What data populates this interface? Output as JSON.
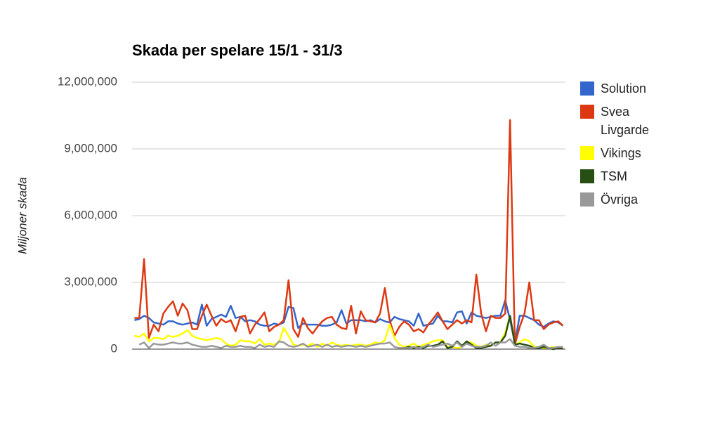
{
  "chart_data": {
    "type": "line",
    "title": "Skada per spelare 15/1 - 31/3",
    "y_label": "Miljoner skada",
    "categories": [
      null,
      null,
      null,
      null,
      null,
      null,
      null,
      null,
      null,
      null,
      null,
      null,
      null,
      null,
      null,
      null,
      null,
      null,
      null,
      null,
      null,
      null,
      null,
      null,
      null,
      null,
      null,
      null,
      null,
      null,
      null,
      null,
      null,
      null,
      null,
      null,
      null,
      null,
      null,
      null,
      null,
      null,
      null,
      null,
      null,
      null,
      null,
      null,
      null,
      null,
      null,
      null,
      null,
      null,
      null,
      null,
      null,
      null,
      null,
      null,
      null,
      null,
      null,
      null,
      null,
      null,
      null,
      null,
      null,
      null,
      null,
      null,
      null,
      null,
      null,
      null,
      null,
      null,
      null,
      null,
      null,
      null,
      null,
      null,
      null,
      null,
      null,
      null,
      null,
      null
    ],
    "ylim": [
      0,
      12000000
    ],
    "yticks": [
      0,
      {
        "value": 3000000,
        "label": "3,000,000"
      },
      {
        "value": 6000000,
        "label": "6,000,000"
      },
      {
        "value": 9000000,
        "label": "9,000,000"
      },
      {
        "value": 12000000,
        "label": "12,000,000"
      }
    ],
    "grid": true,
    "legend": "right",
    "series": [
      {
        "name": "Solution",
        "color": "#3366cc",
        "values": [
          1300000.0,
          1350000.0,
          1500000.0,
          1400000.0,
          1200000.0,
          1150000.0,
          1100000.0,
          1250000.0,
          1250000.0,
          1150000.0,
          1100000.0,
          1150000.0,
          1200000.0,
          1100000.0,
          2000000.0,
          1050000.0,
          1350000.0,
          1450000.0,
          1550000.0,
          1450000.0,
          1950000.0,
          1400000.0,
          1450000.0,
          1250000.0,
          1300000.0,
          1250000.0,
          1100000.0,
          1050000.0,
          1050000.0,
          1150000.0,
          1100000.0,
          1200000.0,
          1900000.0,
          1850000.0,
          950000.0,
          1150000.0,
          1100000.0,
          1100000.0,
          1100000.0,
          1050000.0,
          1050000.0,
          1100000.0,
          1200000.0,
          1750000.0,
          1150000.0,
          1300000.0,
          1300000.0,
          1300000.0,
          1250000.0,
          1300000.0,
          1200000.0,
          1350000.0,
          1250000.0,
          1200000.0,
          1450000.0,
          1350000.0,
          1300000.0,
          1250000.0,
          1050000.0,
          1600000.0,
          1050000.0,
          1100000.0,
          1150000.0,
          1500000.0,
          1250000.0,
          1250000.0,
          1200000.0,
          1650000.0,
          1700000.0,
          1150000.0,
          1650000.0,
          1500000.0,
          1450000.0,
          1400000.0,
          1450000.0,
          1500000.0,
          1500000.0,
          2200000.0,
          1300000.0,
          300000.0,
          1500000.0,
          1500000.0,
          1400000.0,
          1300000.0,
          1100000.0,
          1000000.0,
          1150000.0,
          1250000.0,
          1200000.0,
          1050000.0
        ]
      },
      {
        "name": "Svea Livgarde",
        "color": "#dc3912",
        "values": [
          1400000.0,
          1400000.0,
          4050000.0,
          500000.0,
          1100000.0,
          800000.0,
          1600000.0,
          1900000.0,
          2150000.0,
          1500000.0,
          2050000.0,
          1750000.0,
          900000.0,
          900000.0,
          1500000.0,
          2000000.0,
          1500000.0,
          1050000.0,
          1350000.0,
          1200000.0,
          1300000.0,
          800000.0,
          1450000.0,
          1500000.0,
          700000.0,
          1100000.0,
          1350000.0,
          1650000.0,
          800000.0,
          1000000.0,
          1100000.0,
          1300000.0,
          3100000.0,
          900000.0,
          550000.0,
          1400000.0,
          950000.0,
          700000.0,
          1000000.0,
          1250000.0,
          1400000.0,
          1450000.0,
          1100000.0,
          950000.0,
          900000.0,
          1950000.0,
          700000.0,
          1700000.0,
          1300000.0,
          1250000.0,
          1200000.0,
          1600000.0,
          2750000.0,
          1300000.0,
          600000.0,
          1000000.0,
          1250000.0,
          1100000.0,
          800000.0,
          900000.0,
          750000.0,
          1100000.0,
          1350000.0,
          1650000.0,
          1250000.0,
          900000.0,
          1100000.0,
          1300000.0,
          1150000.0,
          1300000.0,
          1200000.0,
          3350000.0,
          1600000.0,
          800000.0,
          1500000.0,
          1400000.0,
          1400000.0,
          1600000.0,
          10300000.0,
          200000.0,
          1000000.0,
          1600000.0,
          3000000.0,
          1300000.0,
          1300000.0,
          900000.0,
          1100000.0,
          1200000.0,
          1250000.0,
          1050000.0
        ]
      },
      {
        "name": "Vikings",
        "color": "#ffff00",
        "values": [
          600000.0,
          550000.0,
          700000.0,
          350000.0,
          500000.0,
          500000.0,
          450000.0,
          600000.0,
          550000.0,
          600000.0,
          700000.0,
          850000.0,
          600000.0,
          500000.0,
          450000.0,
          400000.0,
          450000.0,
          500000.0,
          450000.0,
          250000.0,
          150000.0,
          200000.0,
          400000.0,
          350000.0,
          350000.0,
          250000.0,
          450000.0,
          200000.0,
          250000.0,
          200000.0,
          300000.0,
          950000.0,
          600000.0,
          200000.0,
          150000.0,
          200000.0,
          150000.0,
          250000.0,
          100000.0,
          250000.0,
          150000.0,
          300000.0,
          200000.0,
          150000.0,
          200000.0,
          150000.0,
          200000.0,
          200000.0,
          150000.0,
          200000.0,
          300000.0,
          250000.0,
          400000.0,
          1100000.0,
          500000.0,
          200000.0,
          100000.0,
          150000.0,
          250000.0,
          100000.0,
          200000.0,
          250000.0,
          350000.0,
          400000.0,
          400000.0,
          100000.0,
          100000.0,
          50000.0,
          100000.0,
          300000.0,
          300000.0,
          150000.0,
          100000.0,
          200000.0,
          150000.0,
          300000.0,
          300000.0,
          750000.0,
          1500000.0,
          200000.0,
          300000.0,
          450000.0,
          350000.0,
          100000.0,
          100000.0,
          50000.0,
          50000.0,
          100000.0,
          50000.0,
          100000.0
        ]
      },
      {
        "name": "TSM",
        "color": "#274e13",
        "values": [
          null,
          null,
          null,
          null,
          null,
          null,
          null,
          null,
          null,
          null,
          null,
          null,
          null,
          null,
          null,
          null,
          null,
          null,
          null,
          null,
          null,
          null,
          null,
          null,
          null,
          null,
          null,
          null,
          null,
          null,
          null,
          null,
          null,
          null,
          null,
          null,
          null,
          null,
          null,
          null,
          null,
          null,
          null,
          null,
          null,
          null,
          null,
          null,
          null,
          null,
          null,
          null,
          null,
          null,
          null,
          null,
          50000.0,
          100000.0,
          50000.0,
          100000.0,
          50000.0,
          150000.0,
          150000.0,
          200000.0,
          350000.0,
          50000.0,
          100000.0,
          350000.0,
          150000.0,
          350000.0,
          200000.0,
          50000.0,
          50000.0,
          100000.0,
          150000.0,
          300000.0,
          300000.0,
          600000.0,
          1500000.0,
          200000.0,
          250000.0,
          200000.0,
          150000.0,
          50000.0,
          50000.0,
          100000.0,
          50000.0,
          0,
          50000.0,
          50000.0
        ]
      },
      {
        "name": "Övriga",
        "color": "#999999",
        "values": [
          null,
          200000.0,
          300000.0,
          50000.0,
          250000.0,
          200000.0,
          200000.0,
          250000.0,
          300000.0,
          250000.0,
          250000.0,
          300000.0,
          200000.0,
          150000.0,
          100000.0,
          100000.0,
          150000.0,
          100000.0,
          50000.0,
          150000.0,
          100000.0,
          100000.0,
          150000.0,
          100000.0,
          100000.0,
          50000.0,
          200000.0,
          100000.0,
          150000.0,
          100000.0,
          350000.0,
          300000.0,
          150000.0,
          100000.0,
          150000.0,
          250000.0,
          100000.0,
          150000.0,
          200000.0,
          100000.0,
          200000.0,
          100000.0,
          150000.0,
          100000.0,
          150000.0,
          150000.0,
          100000.0,
          150000.0,
          100000.0,
          150000.0,
          200000.0,
          250000.0,
          250000.0,
          300000.0,
          100000.0,
          50000.0,
          50000.0,
          50000.0,
          100000.0,
          50000.0,
          100000.0,
          200000.0,
          100000.0,
          150000.0,
          200000.0,
          250000.0,
          150000.0,
          300000.0,
          100000.0,
          250000.0,
          150000.0,
          100000.0,
          100000.0,
          150000.0,
          300000.0,
          150000.0,
          300000.0,
          300000.0,
          450000.0,
          150000.0,
          100000.0,
          100000.0,
          50000.0,
          50000.0,
          100000.0,
          200000.0,
          50000.0,
          50000.0,
          100000.0,
          100000.0
        ]
      }
    ]
  }
}
